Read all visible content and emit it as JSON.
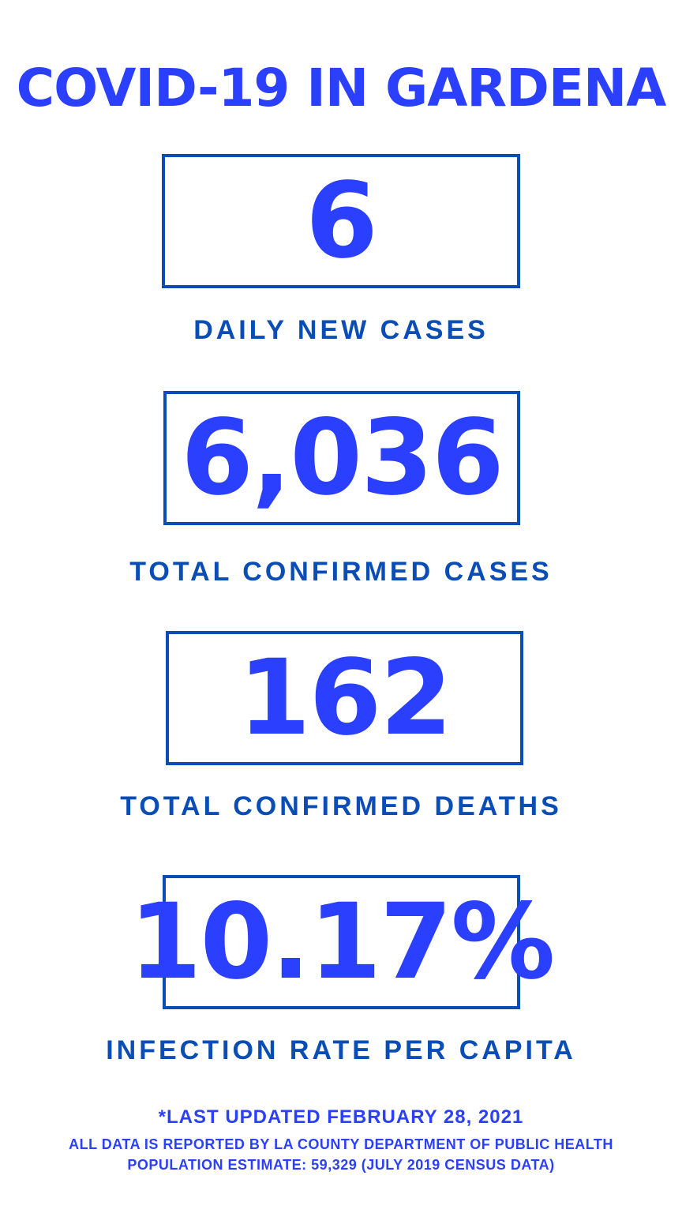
{
  "title": "COVID-19 IN GARDENA",
  "stats": [
    {
      "value": "6",
      "label": "DAILY NEW CASES"
    },
    {
      "value": "6,036",
      "label": "TOTAL CONFIRMED CASES"
    },
    {
      "value": "162",
      "label": "TOTAL CONFIRMED DEATHS"
    },
    {
      "value": "10.17%",
      "label": "INFECTION RATE PER CAPITA"
    }
  ],
  "footer": {
    "updated": "*LAST UPDATED FEBRUARY 28, 2021",
    "source": "ALL DATA IS REPORTED BY LA COUNTY DEPARTMENT OF PUBLIC HEALTH",
    "population": "POPULATION ESTIMATE: 59,329 (JULY 2019 CENSUS DATA)"
  },
  "colors": {
    "accent": "#2b3fff",
    "secondary": "#0a4db4"
  }
}
